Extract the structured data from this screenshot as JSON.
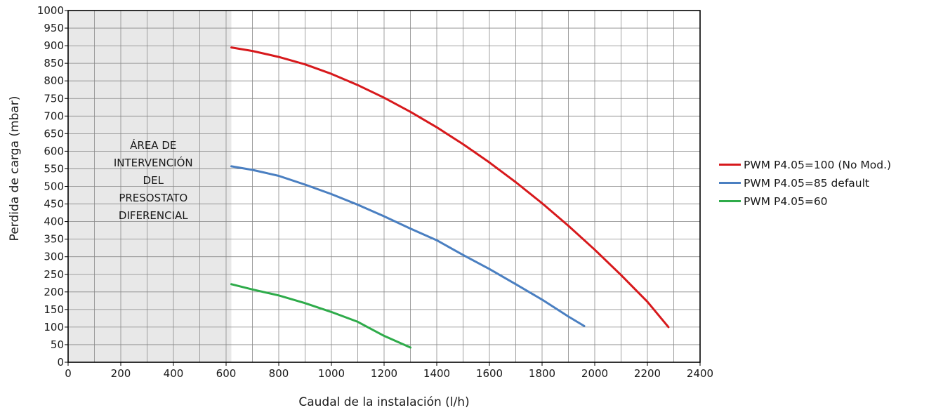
{
  "chart_data": {
    "type": "line",
    "xlabel": "Caudal de la instalación (l/h)",
    "ylabel": "Perdida de carga (mbar)",
    "xlim": [
      0,
      2400
    ],
    "ylim": [
      0,
      1000
    ],
    "x_ticks": [
      0,
      200,
      400,
      600,
      800,
      1000,
      1200,
      1400,
      1600,
      1800,
      2000,
      2200,
      2400
    ],
    "y_ticks": [
      0,
      50,
      100,
      150,
      200,
      250,
      300,
      350,
      400,
      450,
      500,
      550,
      600,
      650,
      700,
      750,
      800,
      850,
      900,
      950,
      1000
    ],
    "grid": true,
    "legend_position": "right",
    "shaded_region": {
      "x_range": [
        0,
        620
      ],
      "color": "#e8e8e8",
      "label_lines": [
        "ÁREA DE",
        "INTERVENCIÓN",
        "DEL",
        "PRESOSTATO",
        "DIFERENCIAL"
      ]
    },
    "series": [
      {
        "name": "PWM P4.05=100 (No Mod.)",
        "color": "#d7191c",
        "x": [
          620,
          700,
          800,
          900,
          1000,
          1100,
          1200,
          1300,
          1400,
          1500,
          1600,
          1700,
          1800,
          1900,
          2000,
          2100,
          2200,
          2280
        ],
        "y": [
          895,
          885,
          868,
          847,
          820,
          788,
          752,
          712,
          668,
          620,
          568,
          512,
          452,
          388,
          320,
          248,
          172,
          100
        ]
      },
      {
        "name": "PWM P4.05=85 default",
        "color": "#4a7fc1",
        "x": [
          620,
          700,
          800,
          900,
          1000,
          1100,
          1200,
          1300,
          1400,
          1500,
          1600,
          1700,
          1800,
          1900,
          1960
        ],
        "y": [
          557,
          547,
          530,
          505,
          478,
          448,
          415,
          380,
          347,
          305,
          265,
          222,
          178,
          130,
          103
        ]
      },
      {
        "name": "PWM P4.05=60",
        "color": "#2eab4a",
        "x": [
          620,
          700,
          800,
          900,
          1000,
          1100,
          1200,
          1300
        ],
        "y": [
          222,
          207,
          190,
          168,
          143,
          115,
          75,
          42
        ]
      }
    ]
  }
}
